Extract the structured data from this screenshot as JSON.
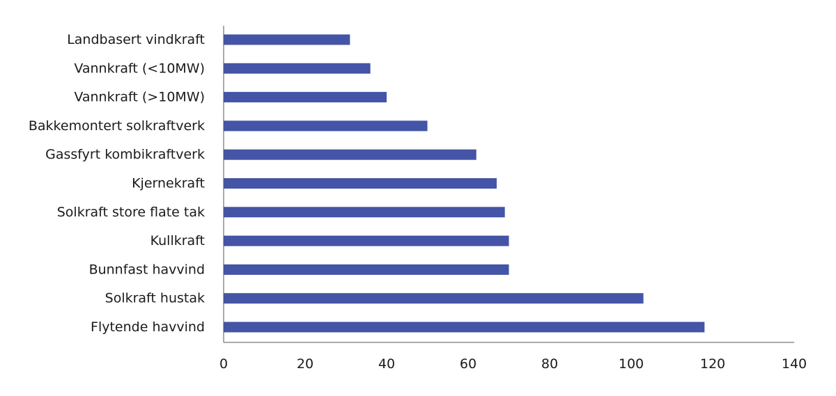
{
  "chart_data": {
    "type": "bar",
    "orientation": "horizontal",
    "categories": [
      "Landbasert vindkraft",
      "Vannkraft (<10MW)",
      "Vannkraft (>10MW)",
      "Bakkemontert solkraftverk",
      "Gassfyrt kombikraftverk",
      "Kjernekraft",
      "Solkraft store flate tak",
      "Kullkraft",
      "Bunnfast havvind",
      "Solkraft hustak",
      "Flytende havvind"
    ],
    "values": [
      31,
      36,
      40,
      50,
      62,
      67,
      69,
      70,
      70,
      103,
      118
    ],
    "xlim": [
      0,
      140
    ],
    "x_ticks": [
      "0",
      "20",
      "40",
      "60",
      "80",
      "100",
      "120",
      "140"
    ],
    "title": "",
    "xlabel": "",
    "ylabel": "",
    "grid": false,
    "legend": "none",
    "bar_color": "#4454a6",
    "axis_color": "#555555"
  }
}
